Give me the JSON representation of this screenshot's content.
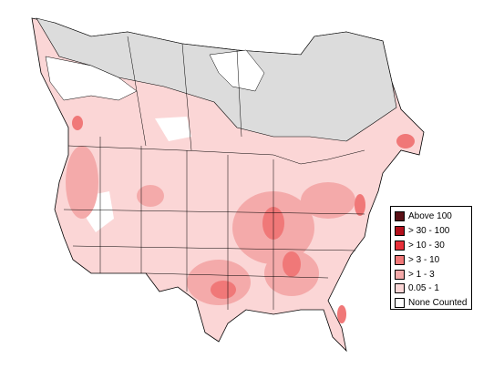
{
  "legend": {
    "items": [
      {
        "label": "Above 100",
        "color": "#5a1016"
      },
      {
        "label": "> 30 - 100",
        "color": "#b3101c"
      },
      {
        "label": "> 10 - 30",
        "color": "#e8303a"
      },
      {
        "label": "> 3 - 10",
        "color": "#f07878"
      },
      {
        "label": "> 1 - 3",
        "color": "#f4aaaa"
      },
      {
        "label": "0.05 - 1",
        "color": "#fbd6d6"
      },
      {
        "label": "None Counted",
        "color": "#ffffff"
      }
    ]
  }
}
